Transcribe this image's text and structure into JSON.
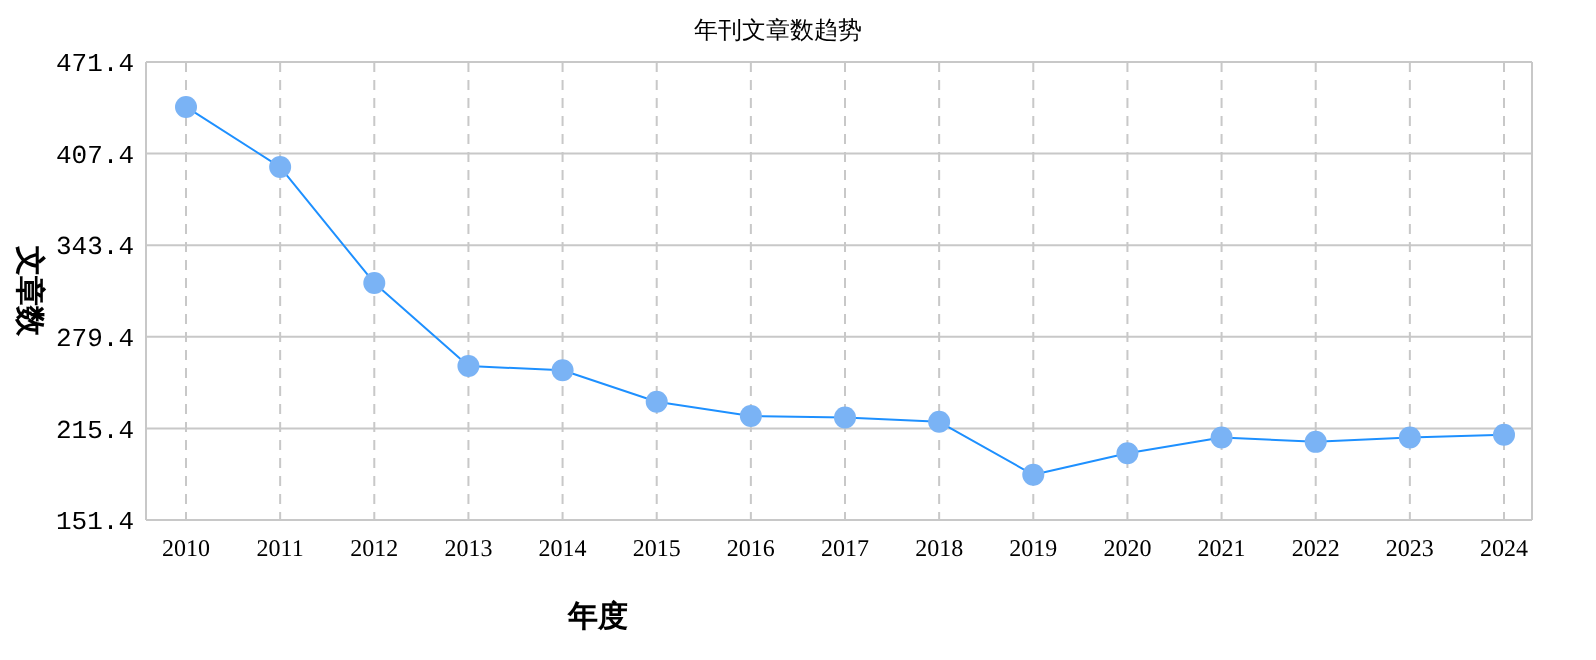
{
  "chart_data": {
    "type": "line",
    "title": "年刊文章数趋势",
    "xlabel": "年度",
    "ylabel": "文章数",
    "categories": [
      "2010",
      "2011",
      "2012",
      "2013",
      "2014",
      "2015",
      "2016",
      "2017",
      "2018",
      "2019",
      "2020",
      "2021",
      "2022",
      "2023",
      "2024"
    ],
    "series": [
      {
        "color": "#1e90ff",
        "values": [
          440,
          398,
          317,
          259,
          256,
          234,
          224,
          223,
          220,
          183,
          198,
          209,
          206,
          209,
          211
        ]
      }
    ],
    "ylim": [
      151.4,
      471.4
    ],
    "yticks": [
      151.4,
      215.4,
      279.4,
      343.4,
      407.4,
      471.4
    ],
    "grid": true,
    "marker": "circle"
  }
}
